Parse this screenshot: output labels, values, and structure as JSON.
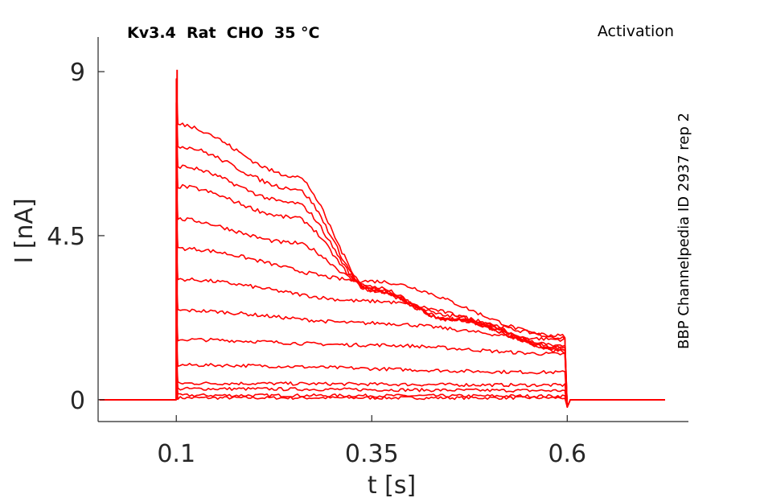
{
  "chart_data": {
    "type": "line",
    "title_left": "Kv3.4  Rat  CHO  35 °C",
    "title_right": "Activation",
    "side_label": "BBP Channelpedia ID 2937 rep 2",
    "xlabel": "t [s]",
    "ylabel": "I [nA]",
    "xlim": [
      0.0,
      0.755
    ],
    "ylim": [
      -0.6,
      9.95
    ],
    "xticks": [
      0.1,
      0.35,
      0.6
    ],
    "xtick_labels": [
      "0.1",
      "0.35",
      "0.6"
    ],
    "yticks": [
      0,
      4.5,
      9
    ],
    "ytick_labels": [
      "0",
      "4.5",
      "9"
    ],
    "pulse_start": 0.1,
    "pulse_end": 0.6,
    "t_start": 0.002,
    "t_end": 0.725,
    "line_color": "#ff0000",
    "grid": false,
    "box": false,
    "series": [
      {
        "values": [
          [
            0.102,
            0.05
          ],
          [
            0.6,
            0.05
          ]
        ]
      },
      {
        "values": [
          [
            0.102,
            0.12
          ],
          [
            0.6,
            0.1
          ]
        ]
      },
      {
        "values": [
          [
            0.102,
            0.3
          ],
          [
            0.6,
            0.25
          ]
        ]
      },
      {
        "values": [
          [
            0.102,
            0.45
          ],
          [
            0.6,
            0.4
          ]
        ]
      },
      {
        "values": [
          [
            0.102,
            0.95
          ],
          [
            0.6,
            0.75
          ]
        ]
      },
      {
        "values": [
          [
            0.102,
            1.65
          ],
          [
            0.35,
            1.5
          ],
          [
            0.6,
            1.25
          ]
        ]
      },
      {
        "values": [
          [
            0.102,
            2.45
          ],
          [
            0.35,
            2.1
          ],
          [
            0.6,
            1.65
          ]
        ]
      },
      {
        "values": [
          [
            0.102,
            3.3
          ],
          [
            0.35,
            2.7
          ],
          [
            0.6,
            1.75
          ]
        ]
      },
      {
        "values": [
          [
            0.102,
            4.15
          ],
          [
            0.35,
            3.25
          ],
          [
            0.6,
            1.7
          ]
        ]
      },
      {
        "values": [
          [
            0.102,
            4.95
          ],
          [
            0.25,
            4.3
          ],
          [
            0.35,
            3.1
          ],
          [
            0.45,
            2.2
          ],
          [
            0.6,
            1.45
          ]
        ]
      },
      {
        "values": [
          [
            0.102,
            5.85
          ],
          [
            0.25,
            5.0
          ],
          [
            0.35,
            3.0
          ],
          [
            0.45,
            2.3
          ],
          [
            0.6,
            1.4
          ]
        ]
      },
      {
        "values": [
          [
            0.102,
            6.4
          ],
          [
            0.25,
            5.4
          ],
          [
            0.35,
            3.0
          ],
          [
            0.45,
            2.2
          ],
          [
            0.6,
            1.4
          ]
        ]
      },
      {
        "values": [
          [
            0.102,
            6.95
          ],
          [
            0.25,
            5.8
          ],
          [
            0.35,
            3.0
          ],
          [
            0.45,
            2.2
          ],
          [
            0.6,
            1.35
          ]
        ]
      },
      {
        "values": [
          [
            0.102,
            7.55
          ],
          [
            0.25,
            6.15
          ],
          [
            0.35,
            3.05
          ],
          [
            0.45,
            2.2
          ],
          [
            0.6,
            1.3
          ]
        ]
      }
    ]
  }
}
